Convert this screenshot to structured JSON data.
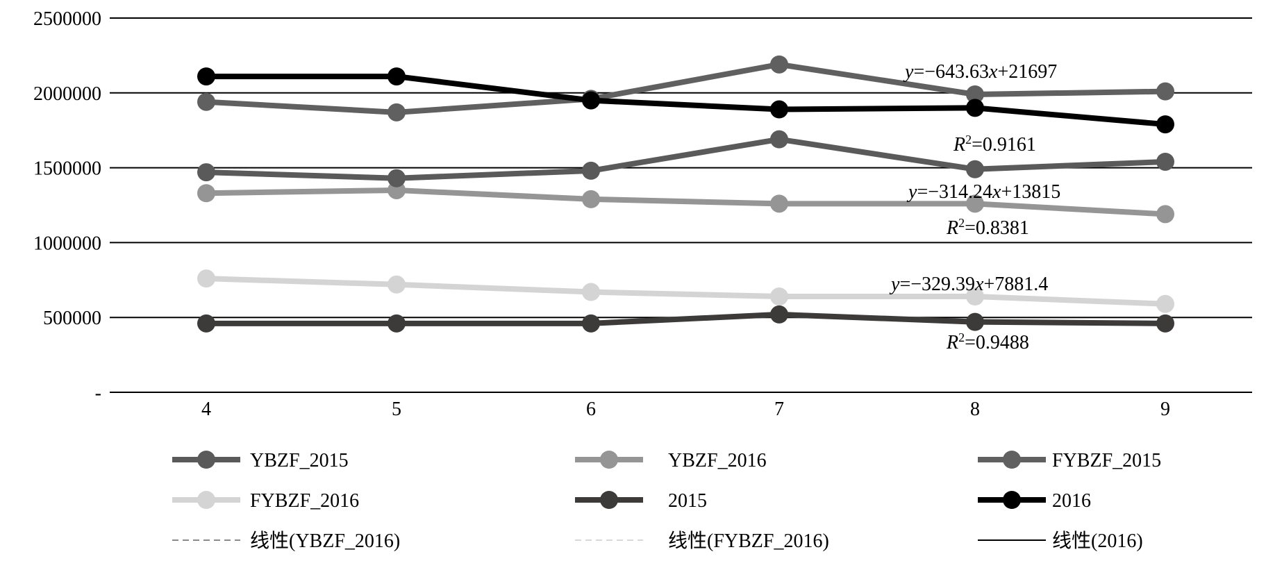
{
  "chart_data": {
    "type": "line",
    "x": [
      4,
      5,
      6,
      7,
      8,
      9
    ],
    "ylim": [
      0,
      2500000
    ],
    "yticks": [
      {
        "value": 0,
        "label": "-"
      },
      {
        "value": 500000,
        "label": "500000"
      },
      {
        "value": 1000000,
        "label": "1000000"
      },
      {
        "value": 1500000,
        "label": "1500000"
      },
      {
        "value": 2000000,
        "label": "2000000"
      },
      {
        "value": 2500000,
        "label": "2500000"
      }
    ],
    "grid": true,
    "legend_position": "bottom",
    "series": [
      {
        "name": "YBZF_2015",
        "values": [
          1470000,
          1430000,
          1480000,
          1690000,
          1490000,
          1540000
        ],
        "color": "#5a5a5a",
        "marker": true
      },
      {
        "name": "YBZF_2016",
        "values": [
          1330000,
          1350000,
          1290000,
          1260000,
          1260000,
          1190000
        ],
        "color": "#959595",
        "marker": true
      },
      {
        "name": "FYBZF_2015",
        "values": [
          1940000,
          1870000,
          1960000,
          2190000,
          1990000,
          2010000
        ],
        "color": "#606060",
        "marker": true
      },
      {
        "name": "FYBZF_2016",
        "values": [
          760000,
          720000,
          670000,
          640000,
          640000,
          590000
        ],
        "color": "#d4d4d4",
        "marker": true
      },
      {
        "name": "2015",
        "values": [
          460000,
          460000,
          460000,
          520000,
          470000,
          460000
        ],
        "color": "#3d3a3a",
        "marker": true
      },
      {
        "name": "2016",
        "values": [
          2110000,
          2110000,
          1950000,
          1890000,
          1900000,
          1790000
        ],
        "color": "#000000",
        "marker": true
      }
    ],
    "trendlines": [
      {
        "name": "线性(YBZF_2016)",
        "color": "#8a8a8a",
        "style": "dashed"
      },
      {
        "name": "线性(FYBZF_2016)",
        "color": "#d8d8d8",
        "style": "dashed"
      },
      {
        "name": "线性(2016)",
        "color": "#000000",
        "style": "solid"
      }
    ],
    "annotations": [
      {
        "y_text": "y",
        "eq_text": "=−643.63",
        "x_text": "x",
        "tail": "+21697",
        "r_label": "R",
        "r_sup": "2",
        "r_value": "=0.9161"
      },
      {
        "y_text": "y",
        "eq_text": "=−314.24",
        "x_text": "x",
        "tail": "+13815",
        "r_label": "R",
        "r_sup": "2",
        "r_value": "=0.8381"
      },
      {
        "y_text": "y",
        "eq_text": "=−329.39",
        "x_text": "x",
        "tail": "+7881.4",
        "r_label": "R",
        "r_sup": "2",
        "r_value": "=0.9488"
      }
    ]
  }
}
